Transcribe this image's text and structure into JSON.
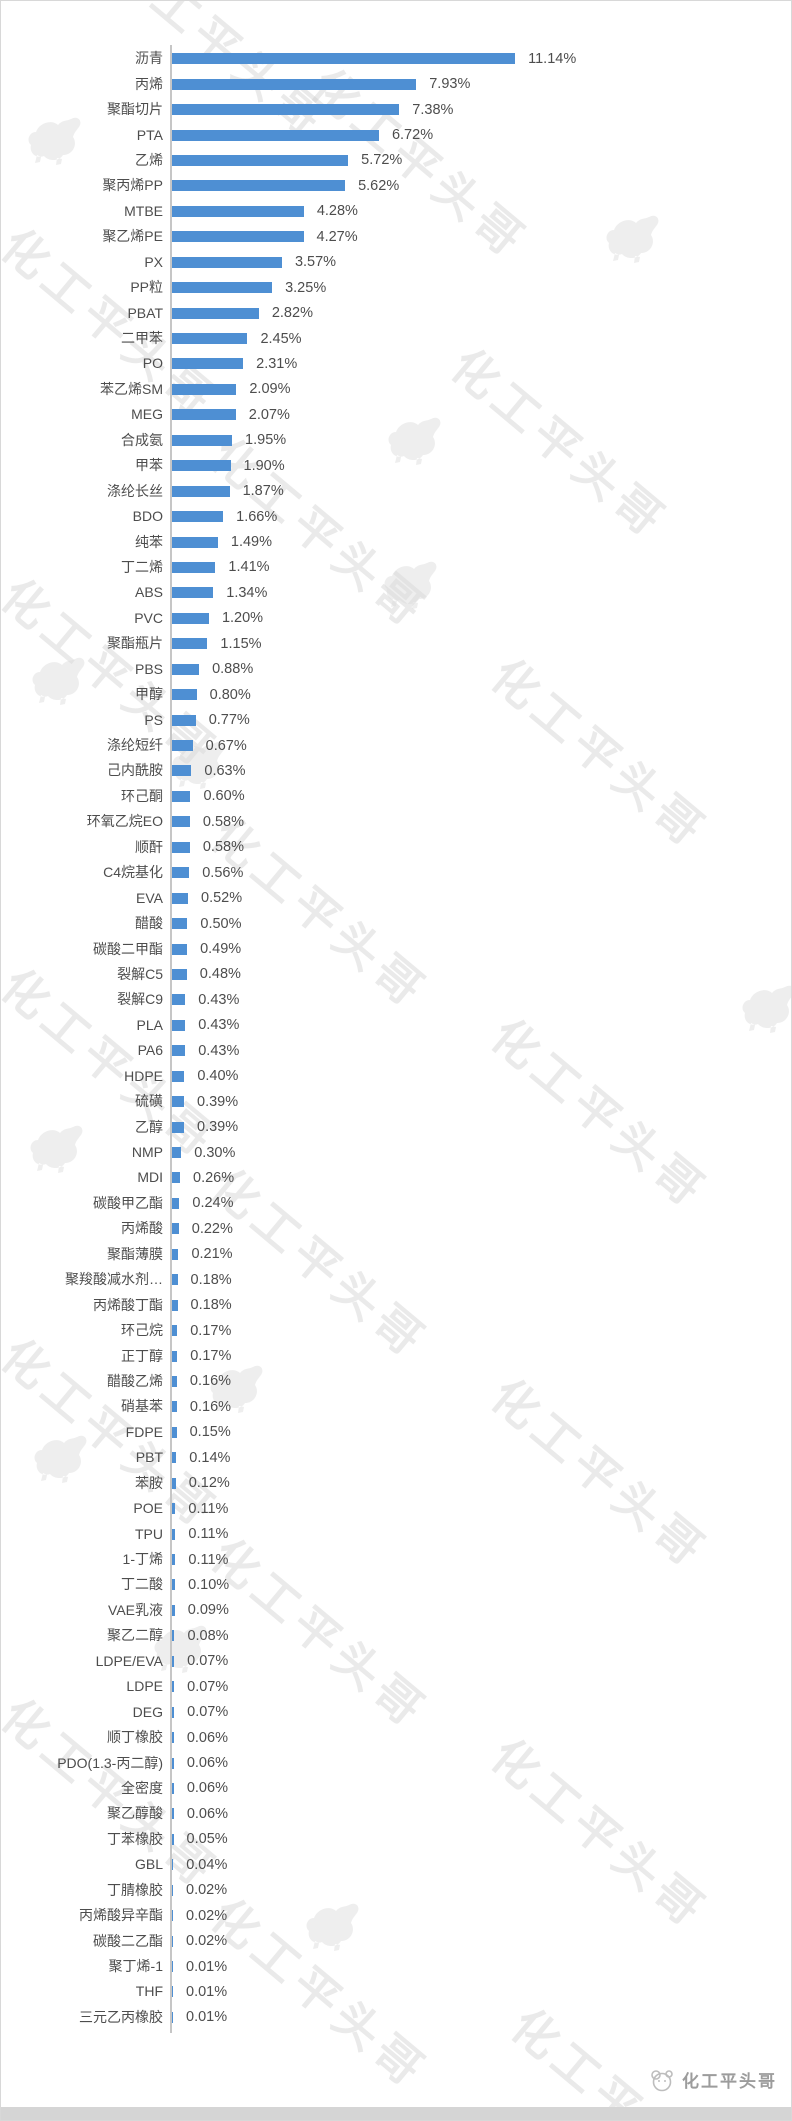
{
  "page": {
    "watermark_text": "化工平头哥",
    "footer_brand": "化工平头哥"
  },
  "chart_data": {
    "type": "bar",
    "orientation": "horizontal",
    "title": "",
    "xlabel": "",
    "ylabel": "",
    "grid": false,
    "legend": false,
    "xlim": [
      0,
      11.5
    ],
    "bar_color": "#4e8fd3",
    "axis_line_color": "#c6c6c6",
    "label_color": "#4d4d4d",
    "categories": [
      "沥青",
      "丙烯",
      "聚酯切片",
      "PTA",
      "乙烯",
      "聚丙烯PP",
      "MTBE",
      "聚乙烯PE",
      "PX",
      "PP粒",
      "PBAT",
      "二甲苯",
      "PO",
      "苯乙烯SM",
      "MEG",
      "合成氨",
      "甲苯",
      "涤纶长丝",
      "BDO",
      "纯苯",
      "丁二烯",
      "ABS",
      "PVC",
      "聚酯瓶片",
      "PBS",
      "甲醇",
      "PS",
      "涤纶短纤",
      "己内酰胺",
      "环己酮",
      "环氧乙烷EO",
      "顺酐",
      "C4烷基化",
      "EVA",
      "醋酸",
      "碳酸二甲酯",
      "裂解C5",
      "裂解C9",
      "PLA",
      "PA6",
      "HDPE",
      "硫磺",
      "乙醇",
      "NMP",
      "MDI",
      "碳酸甲乙酯",
      "丙烯酸",
      "聚酯薄膜",
      "聚羧酸减水剂…",
      "丙烯酸丁酯",
      "环己烷",
      "正丁醇",
      "醋酸乙烯",
      "硝基苯",
      "FDPE",
      "PBT",
      "苯胺",
      "POE",
      "TPU",
      "1-丁烯",
      "丁二酸",
      "VAE乳液",
      "聚乙二醇",
      "LDPE/EVA",
      "LDPE",
      "DEG",
      "顺丁橡胶",
      "PDO(1.3-丙二醇)",
      "全密度",
      "聚乙醇酸",
      "丁苯橡胶",
      "GBL",
      "丁腈橡胶",
      "丙烯酸异辛酯",
      "碳酸二乙酯",
      "聚丁烯-1",
      "THF",
      "三元乙丙橡胶"
    ],
    "values": [
      11.14,
      7.93,
      7.38,
      6.72,
      5.72,
      5.62,
      4.28,
      4.27,
      3.57,
      3.25,
      2.82,
      2.45,
      2.31,
      2.09,
      2.07,
      1.95,
      1.9,
      1.87,
      1.66,
      1.49,
      1.41,
      1.34,
      1.2,
      1.15,
      0.88,
      0.8,
      0.77,
      0.67,
      0.63,
      0.6,
      0.58,
      0.58,
      0.56,
      0.52,
      0.5,
      0.49,
      0.48,
      0.43,
      0.43,
      0.43,
      0.4,
      0.39,
      0.39,
      0.3,
      0.26,
      0.24,
      0.22,
      0.21,
      0.18,
      0.18,
      0.17,
      0.17,
      0.16,
      0.16,
      0.15,
      0.14,
      0.12,
      0.11,
      0.11,
      0.11,
      0.1,
      0.09,
      0.08,
      0.07,
      0.07,
      0.07,
      0.06,
      0.06,
      0.06,
      0.06,
      0.05,
      0.04,
      0.02,
      0.02,
      0.02,
      0.01,
      0.01,
      0.01
    ],
    "value_labels": [
      "11.14%",
      "7.93%",
      "7.38%",
      "6.72%",
      "5.72%",
      "5.62%",
      "4.28%",
      "4.27%",
      "3.57%",
      "3.25%",
      "2.82%",
      "2.45%",
      "2.31%",
      "2.09%",
      "2.07%",
      "1.95%",
      "1.90%",
      "1.87%",
      "1.66%",
      "1.49%",
      "1.41%",
      "1.34%",
      "1.20%",
      "1.15%",
      "0.88%",
      "0.80%",
      "0.77%",
      "0.67%",
      "0.63%",
      "0.60%",
      "0.58%",
      "0.58%",
      "0.56%",
      "0.52%",
      "0.50%",
      "0.49%",
      "0.48%",
      "0.43%",
      "0.43%",
      "0.43%",
      "0.40%",
      "0.39%",
      "0.39%",
      "0.30%",
      "0.26%",
      "0.24%",
      "0.22%",
      "0.21%",
      "0.18%",
      "0.18%",
      "0.17%",
      "0.17%",
      "0.16%",
      "0.16%",
      "0.15%",
      "0.14%",
      "0.12%",
      "0.11%",
      "0.11%",
      "0.11%",
      "0.10%",
      "0.09%",
      "0.08%",
      "0.07%",
      "0.07%",
      "0.07%",
      "0.06%",
      "0.06%",
      "0.06%",
      "0.06%",
      "0.05%",
      "0.04%",
      "0.02%",
      "0.02%",
      "0.02%",
      "0.01%",
      "0.01%",
      "0.01%"
    ]
  }
}
